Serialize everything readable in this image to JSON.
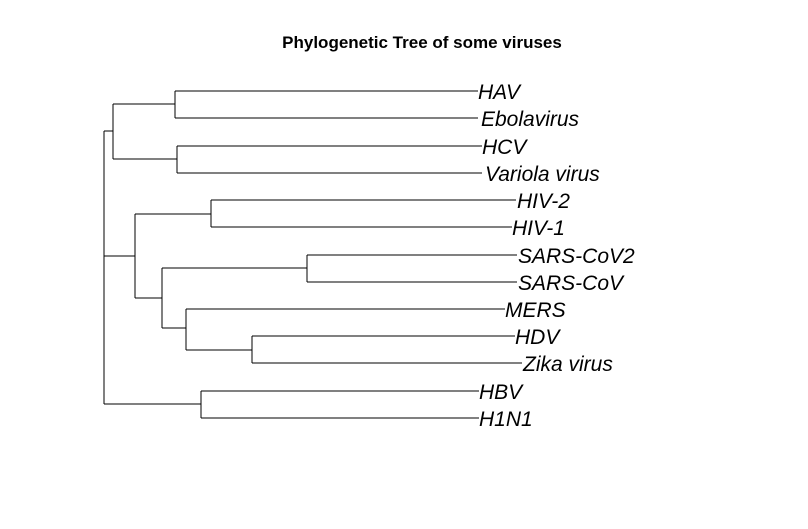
{
  "diagram": {
    "title": "Phylogenetic Tree of some viruses",
    "tips": [
      "HAV",
      "Ebolavirus",
      "HCV",
      "Variola virus",
      "HIV-2",
      "HIV-1",
      "SARS-CoV2",
      "SARS-CoV",
      "MERS",
      "HDV",
      "Zika virus",
      "HBV",
      "H1N1"
    ],
    "colors": {
      "background": "#ffffff",
      "line": "#000000",
      "text": "#000000"
    }
  }
}
